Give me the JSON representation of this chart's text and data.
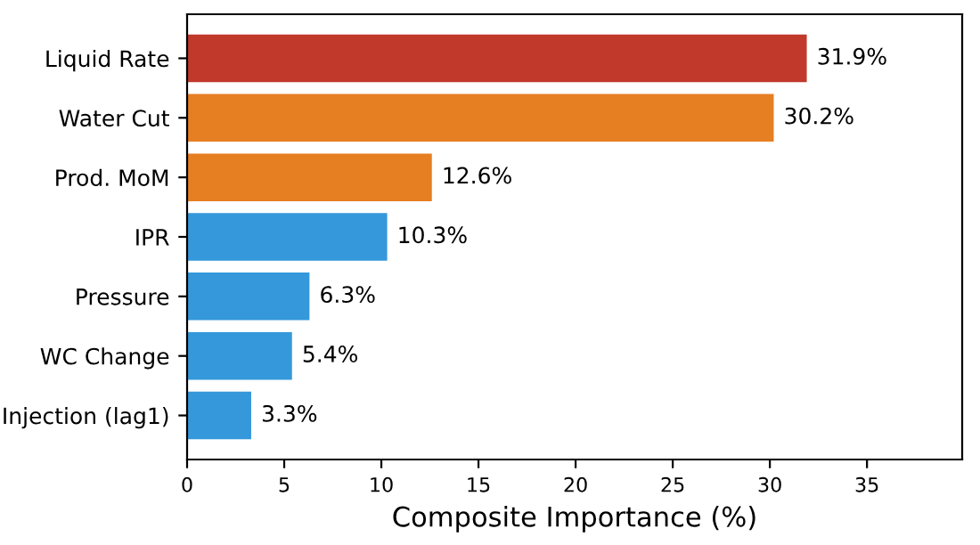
{
  "chart_data": {
    "type": "bar",
    "orientation": "horizontal",
    "xlabel": "Composite Importance (%)",
    "categories": [
      "Liquid Rate",
      "Water Cut",
      "Prod. MoM",
      "IPR",
      "Pressure",
      "WC Change",
      "Injection (lag1)"
    ],
    "values": [
      31.9,
      30.2,
      12.6,
      10.3,
      6.3,
      5.4,
      3.3
    ],
    "colors": [
      "#c0392b",
      "#e67e22",
      "#e67e22",
      "#3498db",
      "#3498db",
      "#3498db",
      "#3498db"
    ],
    "value_labels": [
      "31.9%",
      "30.2%",
      "12.6%",
      "10.3%",
      "6.3%",
      "5.4%",
      "3.3%"
    ],
    "xlim": [
      0,
      39.9
    ],
    "xticks": [
      0,
      5,
      10,
      15,
      20,
      25,
      30,
      35
    ],
    "grid": false,
    "legend": false
  }
}
